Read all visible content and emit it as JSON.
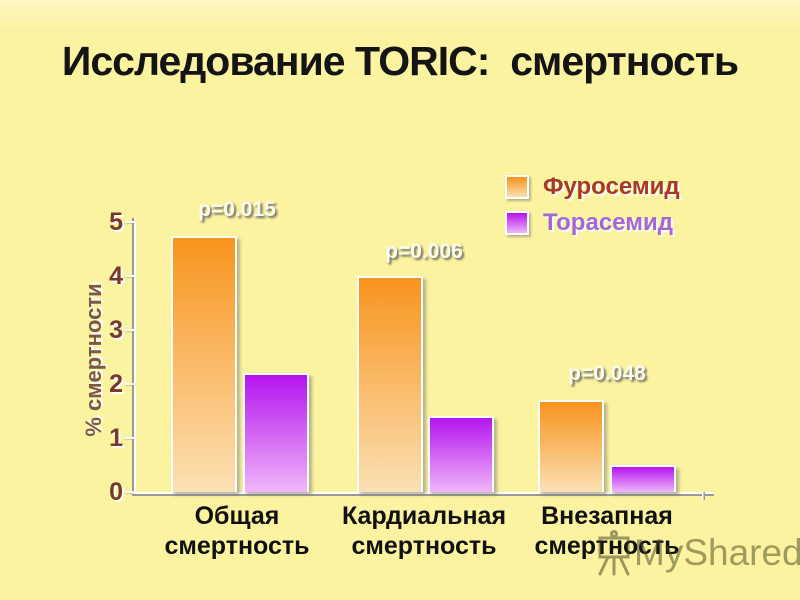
{
  "slide": {
    "title": "Исследование TORIC:  смертность",
    "watermark": "MyShared"
  },
  "chart_data": {
    "type": "bar",
    "title": "Исследование TORIC: смертность",
    "categories": [
      "Общая смертность",
      "Кардиальная смертность",
      "Внезапная смертность"
    ],
    "series": [
      {
        "name": "Фуросемид",
        "values": [
          4.75,
          4.0,
          1.7
        ],
        "color_top": "#f8941d",
        "color_bottom": "#fbe0b4",
        "label_color": "#a63a22"
      },
      {
        "name": "Торасемид",
        "values": [
          2.2,
          1.4,
          0.5
        ],
        "color_top": "#b414ee",
        "color_bottom": "#f0b6f9",
        "label_color": "#a368d6"
      }
    ],
    "p_values": [
      "p=0.015",
      "p=0.006",
      "p=0.048"
    ],
    "xlabel": "",
    "ylabel": "% смертности",
    "ylim": [
      0,
      5
    ],
    "yticks": [
      0,
      1,
      2,
      3,
      4,
      5
    ],
    "grid": false,
    "legend_position": "top-right"
  }
}
